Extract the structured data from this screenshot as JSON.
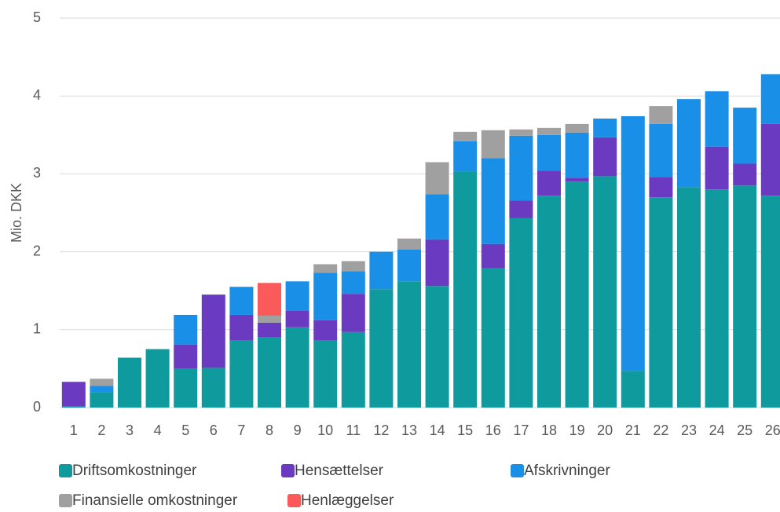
{
  "chart_data": {
    "type": "stacked_bar",
    "y_label": "Mio. DKK",
    "categories": [
      "1",
      "2",
      "3",
      "4",
      "5",
      "6",
      "7",
      "8",
      "9",
      "10",
      "11",
      "12",
      "13",
      "14",
      "15",
      "16",
      "17",
      "18",
      "19",
      "20",
      "21",
      "22",
      "23",
      "24",
      "25",
      "26"
    ],
    "series": [
      {
        "name": "Driftsomkostninger",
        "color": "#0f9b9e",
        "values": [
          0.02,
          0.2,
          0.64,
          0.75,
          0.5,
          0.51,
          0.86,
          0.9,
          1.03,
          0.86,
          0.97,
          1.52,
          1.62,
          1.56,
          3.03,
          1.79,
          2.43,
          2.72,
          2.9,
          2.97,
          0.47,
          2.7,
          2.83,
          2.8,
          2.85,
          2.72
        ]
      },
      {
        "name": "Hensættelser",
        "color": "#6a3bc0",
        "values": [
          0.31,
          0,
          0,
          0,
          0.31,
          0.94,
          0.33,
          0.19,
          0.21,
          0.26,
          0.49,
          0,
          0,
          0.6,
          0,
          0.31,
          0.23,
          0.32,
          0.05,
          0.5,
          0,
          0.26,
          0,
          0.55,
          0.28,
          0.92
        ]
      },
      {
        "name": "Afskrivninger",
        "color": "#1a8fe8",
        "values": [
          0,
          0.08,
          0,
          0,
          0.38,
          0,
          0.36,
          0,
          0.38,
          0.61,
          0.29,
          0.48,
          0.41,
          0.58,
          0.39,
          1.1,
          0.83,
          0.46,
          0.58,
          0.24,
          3.27,
          0.68,
          1.13,
          0.71,
          0.72,
          0.64
        ]
      },
      {
        "name": "Finansielle omkostninger",
        "color": "#a0a0a0",
        "values": [
          0,
          0.09,
          0,
          0,
          0,
          0,
          0,
          0.09,
          0,
          0.11,
          0.13,
          0,
          0.14,
          0.41,
          0.12,
          0.36,
          0.08,
          0.09,
          0.11,
          0,
          0,
          0.23,
          0,
          0,
          0,
          0
        ]
      },
      {
        "name": "Henlæggelser",
        "color": "#fb5a5a",
        "values": [
          0,
          0,
          0,
          0,
          0,
          0,
          0,
          0.42,
          0,
          0,
          0,
          0,
          0,
          0,
          0,
          0,
          0,
          0,
          0,
          0,
          0,
          0,
          0,
          0,
          0,
          0
        ]
      }
    ],
    "ylim": [
      0,
      5
    ],
    "yticks": [
      0,
      1,
      2,
      3,
      4,
      5
    ],
    "grid": true
  }
}
